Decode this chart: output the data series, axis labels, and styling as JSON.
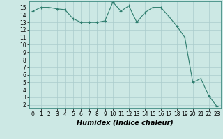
{
  "x": [
    0,
    1,
    2,
    3,
    4,
    5,
    6,
    7,
    8,
    9,
    10,
    11,
    12,
    13,
    14,
    15,
    16,
    17,
    18,
    19,
    20,
    21,
    22,
    23
  ],
  "y": [
    14.5,
    15.0,
    15.0,
    14.8,
    14.7,
    13.5,
    13.0,
    13.0,
    13.0,
    13.2,
    15.7,
    14.5,
    15.2,
    13.0,
    14.3,
    15.0,
    15.0,
    13.8,
    12.5,
    11.0,
    5.0,
    5.5,
    3.2,
    1.8
  ],
  "line_color": "#2e7d6e",
  "marker": "+",
  "marker_size": 3,
  "marker_linewidth": 0.8,
  "bg_color": "#cce8e4",
  "grid_color": "#aacccc",
  "xlabel": "Humidex (Indice chaleur)",
  "xlim": [
    -0.5,
    23.5
  ],
  "ylim": [
    1.5,
    15.8
  ],
  "yticks": [
    2,
    3,
    4,
    5,
    6,
    7,
    8,
    9,
    10,
    11,
    12,
    13,
    14,
    15
  ],
  "xticks": [
    0,
    1,
    2,
    3,
    4,
    5,
    6,
    7,
    8,
    9,
    10,
    11,
    12,
    13,
    14,
    15,
    16,
    17,
    18,
    19,
    20,
    21,
    22,
    23
  ],
  "tick_fontsize": 5.5,
  "xlabel_fontsize": 7,
  "linewidth": 0.8
}
